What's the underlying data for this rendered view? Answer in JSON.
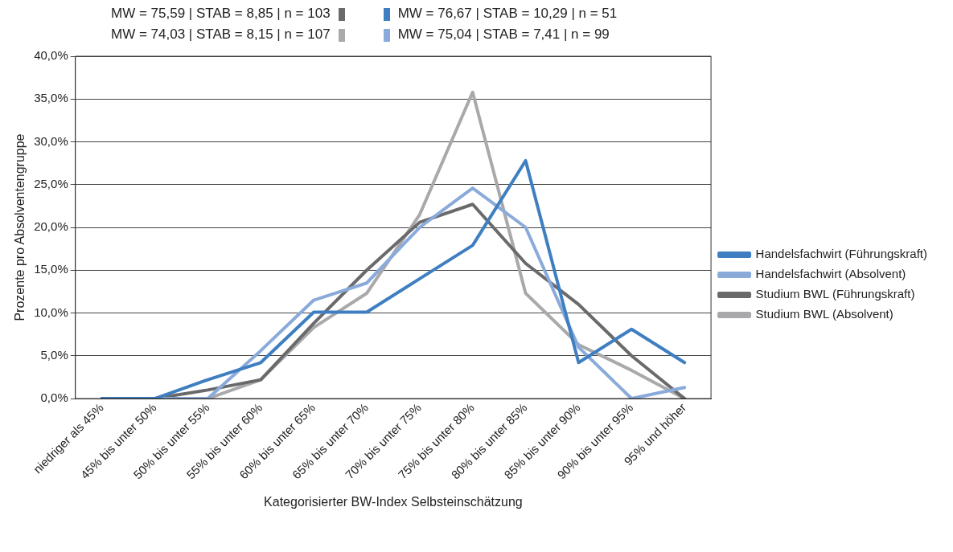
{
  "chart_data": {
    "type": "line",
    "xlabel": "Kategorisierter BW-Index Selbsteinschätzung",
    "ylabel": "Prozente pro Absolventengruppe",
    "categories": [
      "niedriger als 45%",
      "45% bis unter 50%",
      "50% bis unter 55%",
      "55% bis unter 60%",
      "60% bis unter 65%",
      "65% bis unter 70%",
      "70% bis unter 75%",
      "75% bis unter 80%",
      "80% bis unter 85%",
      "85% bis unter 90%",
      "90% bis unter 95%",
      "95% und höher"
    ],
    "series": [
      {
        "name": "Handelsfachwirt (Führungskraft)",
        "color": "#3f7fc1",
        "values": [
          0,
          0,
          2.2,
          4.2,
          10.1,
          10.1,
          14,
          17.9,
          27.8,
          4.2,
          8.1,
          4.2
        ]
      },
      {
        "name": "Handelsfachwirt (Absolvent)",
        "color": "#8aabda",
        "values": [
          0,
          0,
          0,
          5.6,
          11.5,
          13.5,
          20,
          24.6,
          20,
          6,
          0,
          1.3
        ]
      },
      {
        "name": "Studium BWL (Führungskraft)",
        "color": "#6a6a6c",
        "values": [
          0,
          0,
          1,
          2.2,
          8.8,
          15,
          20.6,
          22.7,
          15.8,
          11,
          5,
          0
        ]
      },
      {
        "name": "Studium BWL (Absolvent)",
        "color": "#a9a9ab",
        "values": [
          0,
          0,
          0,
          2.2,
          8.3,
          12.3,
          21.5,
          35.8,
          12.3,
          6.3,
          3.3,
          0
        ]
      }
    ],
    "ylim": [
      0,
      40
    ],
    "yticks": [
      {
        "value": 0,
        "label": "0,0%"
      },
      {
        "value": 5,
        "label": "5,0%"
      },
      {
        "value": 10,
        "label": "10,0%"
      },
      {
        "value": 15,
        "label": "15,0%"
      },
      {
        "value": 20,
        "label": "20,0%"
      },
      {
        "value": 25,
        "label": "25,0%"
      },
      {
        "value": 30,
        "label": "30,0%"
      },
      {
        "value": 35,
        "label": "35,0%"
      },
      {
        "value": 40,
        "label": "40,0%"
      }
    ],
    "grid": "y",
    "legend": "right",
    "marker": "none",
    "line_style": "solid",
    "annotations": [
      "MW = 76,67 | STAB = 10,29 | n = 51",
      "MW = 75,04 | STAB = 7,41 | n = 99",
      "MW = 75,59 | STAB = 8,85 | n = 103",
      "MW = 74,03 | STAB = 8,15 | n = 107"
    ]
  }
}
